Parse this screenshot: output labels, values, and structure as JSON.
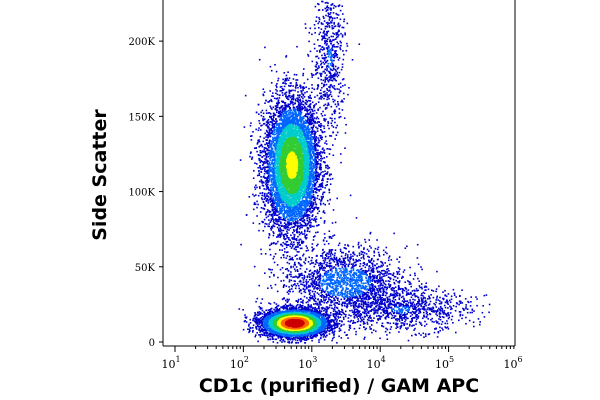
{
  "chart_data": {
    "type": "scatter",
    "subtype": "flow-cytometry-density-plot",
    "title": "",
    "xlabel": "CD1c (purified) / GAM APC",
    "ylabel": "Side Scatter",
    "x_scale": "log",
    "xlim": [
      10,
      1000000
    ],
    "ylim": [
      0,
      230000
    ],
    "x_ticks": [
      {
        "value": 10,
        "base": "10",
        "exp": "1"
      },
      {
        "value": 100,
        "base": "10",
        "exp": "2"
      },
      {
        "value": 1000,
        "base": "10",
        "exp": "3"
      },
      {
        "value": 10000,
        "base": "10",
        "exp": "4"
      },
      {
        "value": 100000,
        "base": "10",
        "exp": "5"
      },
      {
        "value": 1000000,
        "base": "10",
        "exp": "6"
      }
    ],
    "y_ticks": [
      {
        "value": 0,
        "label": "0"
      },
      {
        "value": 50000,
        "label": "50K"
      },
      {
        "value": 100000,
        "label": "100K"
      },
      {
        "value": 150000,
        "label": "150K"
      },
      {
        "value": 200000,
        "label": "200K"
      }
    ],
    "grid": false,
    "legend": "none",
    "color_scale": [
      "#0000cc",
      "#0066ff",
      "#00cccc",
      "#33cc33",
      "#ffff00",
      "#ff6600",
      "#cc0000"
    ],
    "populations": [
      {
        "x_center": 500,
        "y_center": 118000,
        "x_spread_decades": 0.2,
        "y_spread": 22000,
        "count": 7000,
        "peak_density": 0.62
      },
      {
        "x_center": 550,
        "y_center": 13000,
        "x_spread_decades": 0.24,
        "y_spread": 4500,
        "count": 5000,
        "peak_density": 1.0
      },
      {
        "x_center": 3000,
        "y_center": 40000,
        "x_spread_decades": 0.45,
        "y_spread": 12000,
        "count": 1800,
        "peak_density": 0.2
      },
      {
        "x_center": 20000,
        "y_center": 22000,
        "x_spread_decades": 0.5,
        "y_spread": 7000,
        "count": 900,
        "peak_density": 0.15
      },
      {
        "x_center": 1800,
        "y_center": 190000,
        "x_spread_decades": 0.12,
        "y_spread": 25000,
        "count": 600,
        "peak_density": 0.15
      }
    ]
  }
}
